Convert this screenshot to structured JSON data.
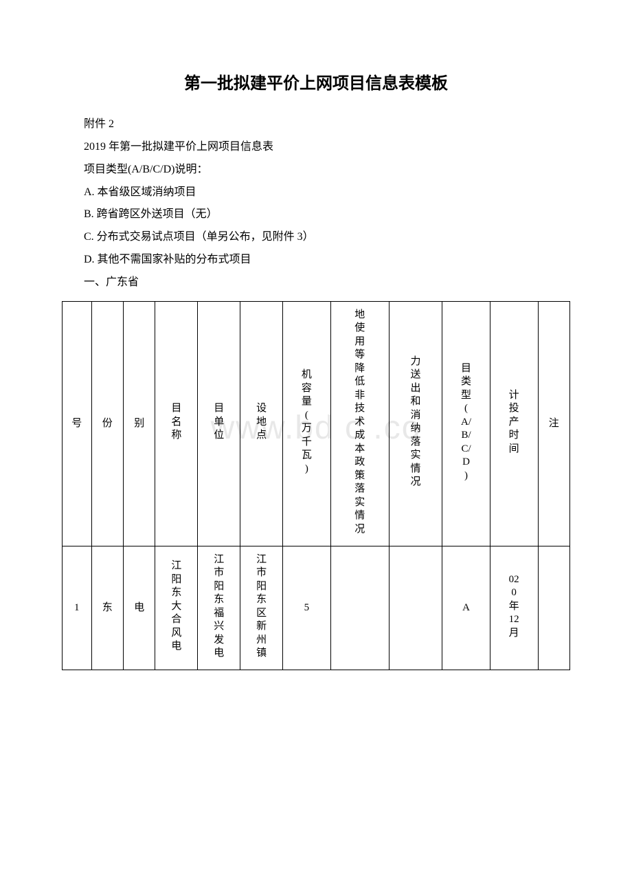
{
  "title": "第一批拟建平价上网项目信息表模板",
  "lines": {
    "attachment": "附件 2",
    "year_title": "2019 年第一批拟建平价上网项目信息表",
    "type_intro": "项目类型(A/B/C/D)说明：",
    "type_a": "A. 本省级区域消纳项目",
    "type_b": "B. 跨省跨区外送项目（无）",
    "type_c": "C. 分布式交易试点项目（单另公布，见附件 3）",
    "type_d": "D. 其他不需国家补贴的分布式项目",
    "section": "一、广东省"
  },
  "watermark": "www.bd   c .co",
  "table": {
    "headers": [
      "号",
      "份",
      "别",
      "目名称",
      "目单位",
      "设地点",
      "机容量(万千瓦)",
      "地使用等降低非技术成本政策落实情况",
      "力送出和消纳落实情况",
      "目类型(A/B/C/D)",
      "计投产时间",
      "注"
    ],
    "rows": [
      {
        "c0": "1",
        "c1": "东",
        "c2": "电",
        "c3": "江阳东大合风电",
        "c4": "江市阳东福兴发电",
        "c5": "江市阳东区新州镇",
        "c6": "5",
        "c7": "",
        "c8": "",
        "c9": "A",
        "c10": "020年12月",
        "c11": ""
      }
    ]
  }
}
